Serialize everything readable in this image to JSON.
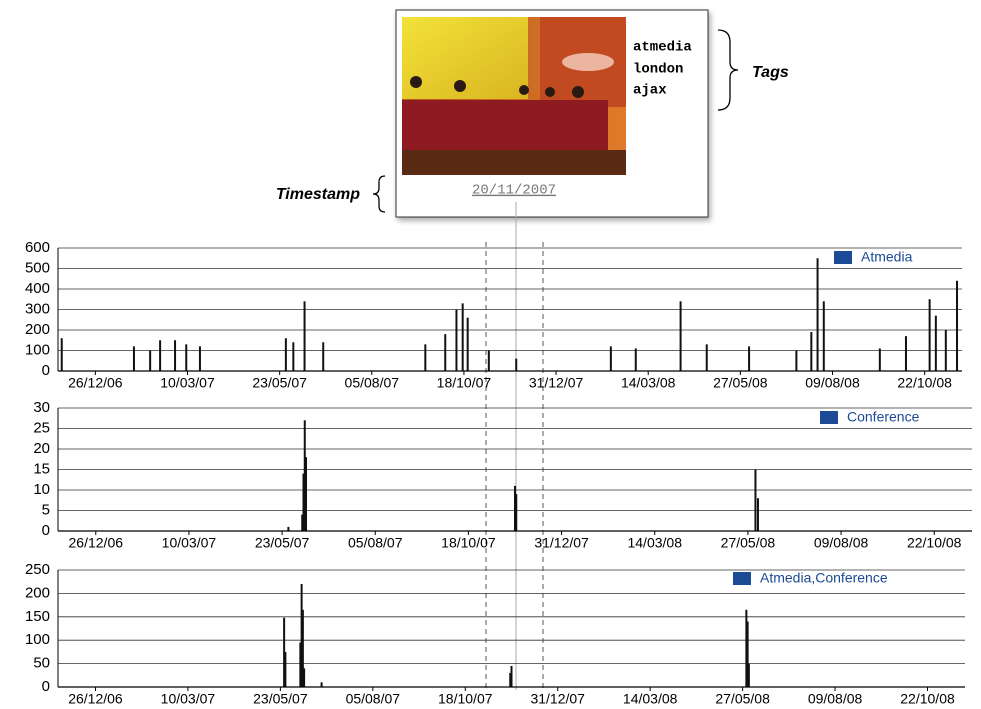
{
  "card": {
    "tags": [
      "atmedia",
      "london",
      "ajax"
    ],
    "tags_label": "Tags",
    "timestamp_label": "Timestamp",
    "timestamp": "20/11/2007"
  },
  "chart_data": [
    {
      "type": "bar",
      "series": [
        {
          "name": "Atmedia",
          "color": "#111111",
          "legend_color": "#1c4a94",
          "x": [
            "29/11/06",
            "26/01/07",
            "08/02/07",
            "16/02/07",
            "28/02/07",
            "09/03/07",
            "20/03/07",
            "28/05/07",
            "03/06/07",
            "12/06/07",
            "27/06/07",
            "17/09/07",
            "03/10/07",
            "12/10/07",
            "17/10/07",
            "21/10/07",
            "07/11/07",
            "29/11/07",
            "13/02/08",
            "04/03/08",
            "09/04/08",
            "30/04/08",
            "03/06/08",
            "11/07/08",
            "23/07/08",
            "28/07/08",
            "02/08/08",
            "16/09/08",
            "07/10/08",
            "26/10/08",
            "31/10/08",
            "08/11/08",
            "17/11/08"
          ],
          "values": [
            160,
            120,
            100,
            150,
            150,
            130,
            120,
            160,
            140,
            340,
            140,
            130,
            180,
            300,
            330,
            260,
            100,
            60,
            120,
            110,
            340,
            130,
            120,
            100,
            190,
            550,
            340,
            110,
            170,
            350,
            270,
            200,
            440
          ]
        }
      ],
      "xlim": [
        "26/11/06",
        "21/11/08"
      ],
      "xticks": [
        "26/12/06",
        "10/03/07",
        "23/05/07",
        "05/08/07",
        "18/10/07",
        "31/12/07",
        "14/03/08",
        "27/05/08",
        "09/08/08",
        "22/10/08"
      ],
      "ylim": [
        0,
        600
      ],
      "yticks": [
        0,
        100,
        200,
        300,
        400,
        500,
        600
      ],
      "grid": true
    },
    {
      "type": "bar",
      "series": [
        {
          "name": "Conference",
          "color": "#111111",
          "legend_color": "#1c4a94",
          "x": [
            "28/05/07",
            "08/06/07",
            "09/06/07",
            "10/06/07",
            "11/06/07",
            "24/11/07",
            "25/11/07",
            "02/06/08",
            "04/06/08"
          ],
          "values": [
            1,
            4,
            14,
            27,
            18,
            11,
            9,
            15,
            8
          ]
        }
      ],
      "xlim": [
        "26/11/06",
        "21/11/08"
      ],
      "xticks": [
        "26/12/06",
        "10/03/07",
        "23/05/07",
        "05/08/07",
        "18/10/07",
        "31/12/07",
        "14/03/08",
        "27/05/08",
        "09/08/08",
        "22/10/08"
      ],
      "ylim": [
        0,
        30
      ],
      "yticks": [
        0,
        5,
        10,
        15,
        20,
        25,
        30
      ],
      "grid": true
    },
    {
      "type": "bar",
      "series": [
        {
          "name": "Atmedia,Conference",
          "color": "#111111",
          "legend_color": "#1c4a94",
          "x": [
            "26/05/07",
            "27/05/07",
            "08/06/07",
            "09/06/07",
            "10/06/07",
            "11/06/07",
            "25/06/07",
            "23/11/07",
            "24/11/07",
            "30/05/08",
            "31/05/08",
            "01/06/08"
          ],
          "values": [
            148,
            75,
            95,
            220,
            165,
            40,
            10,
            30,
            45,
            165,
            140,
            50
          ]
        }
      ],
      "xlim": [
        "26/11/06",
        "21/11/08"
      ],
      "xticks": [
        "26/12/06",
        "10/03/07",
        "23/05/07",
        "05/08/07",
        "18/10/07",
        "31/12/07",
        "14/03/08",
        "27/05/08",
        "09/08/08",
        "22/10/08"
      ],
      "ylim": [
        0,
        250
      ],
      "yticks": [
        0,
        50,
        100,
        150,
        200,
        250
      ],
      "grid": true
    }
  ]
}
